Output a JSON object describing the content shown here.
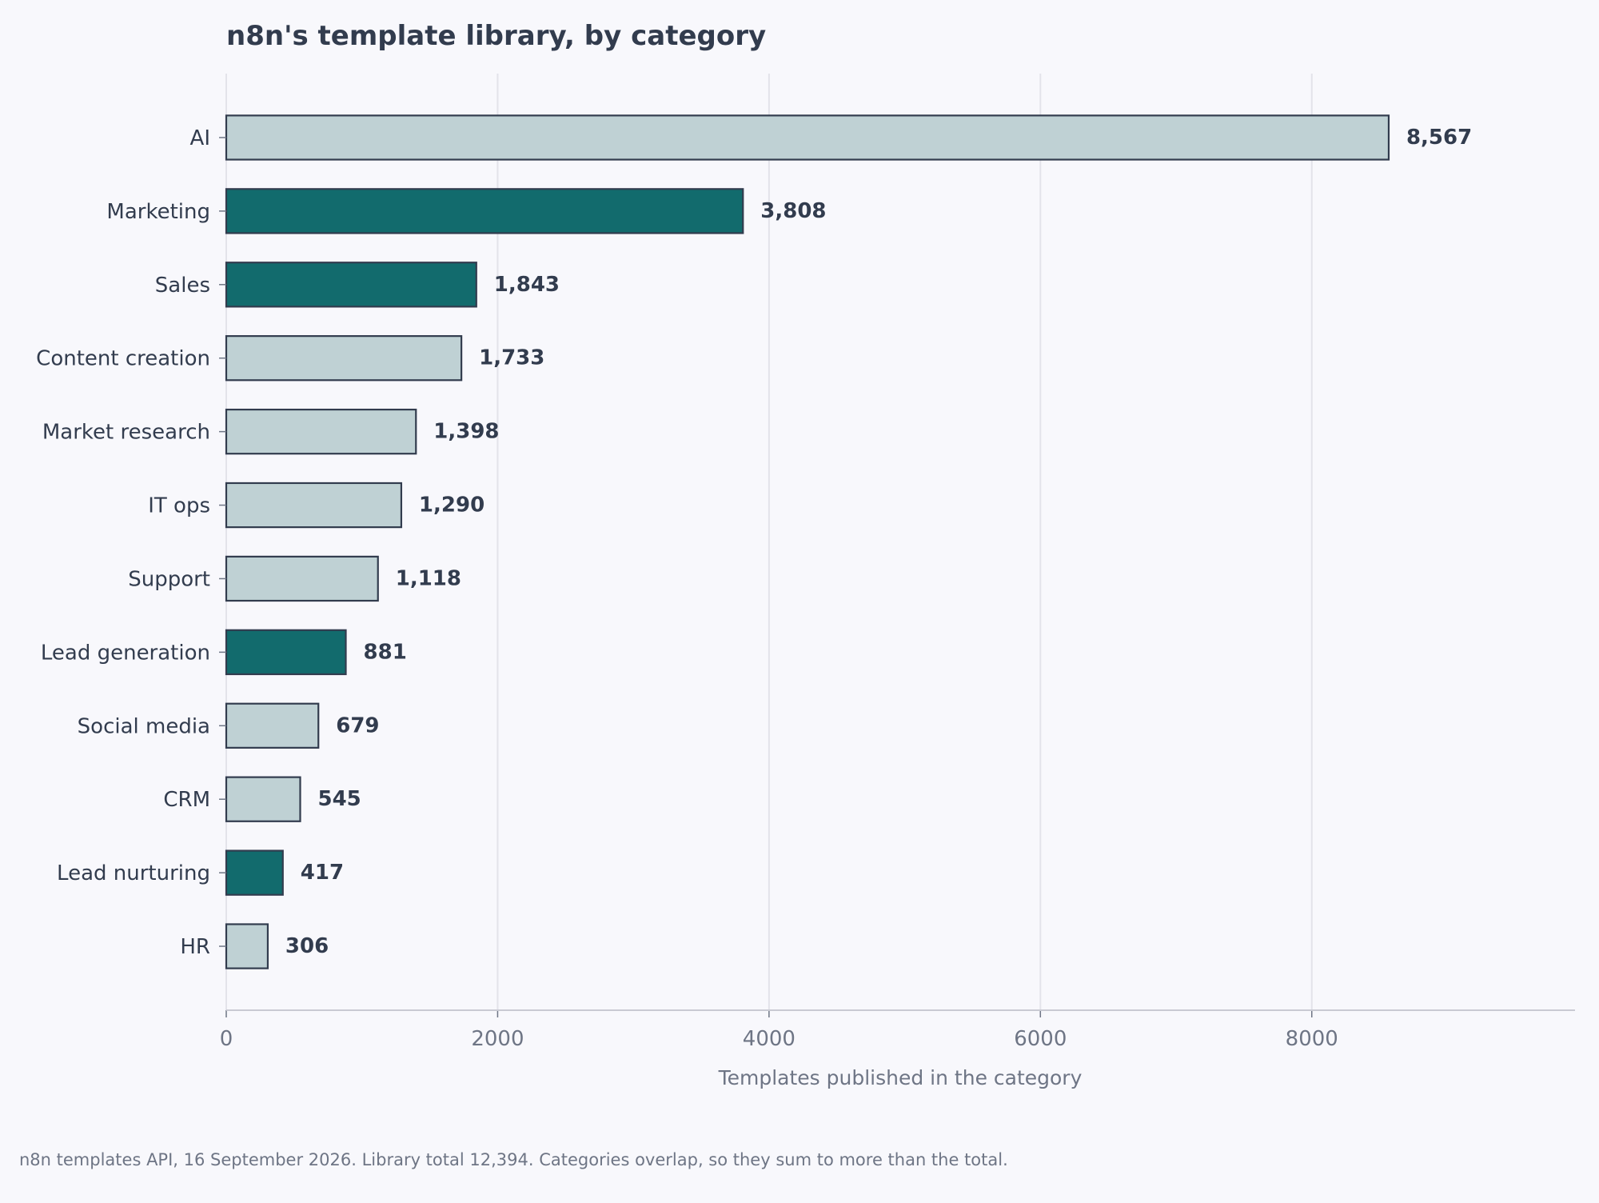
{
  "chart_data": {
    "type": "bar",
    "orientation": "horizontal",
    "title": "n8n's template library, by category",
    "xlabel": "Templates published in the category",
    "ylabel": "",
    "xlim": [
      0,
      9940
    ],
    "xticks": [
      0,
      2000,
      4000,
      6000,
      8000
    ],
    "xtick_labels": [
      "0",
      "2000",
      "4000",
      "6000",
      "8000"
    ],
    "grid": "vertical",
    "categories": [
      "AI",
      "Marketing",
      "Sales",
      "Content creation",
      "Market research",
      "IT ops",
      "Support",
      "Lead generation",
      "Social media",
      "CRM",
      "Lead nurturing",
      "HR"
    ],
    "values": [
      8567,
      3808,
      1843,
      1733,
      1398,
      1290,
      1118,
      881,
      679,
      545,
      417,
      306
    ],
    "value_labels": [
      "8,567",
      "3,808",
      "1,843",
      "1,733",
      "1,398",
      "1,290",
      "1,118",
      "881",
      "679",
      "545",
      "417",
      "306"
    ],
    "highlighted": [
      "Marketing",
      "Sales",
      "Lead generation",
      "Lead nurturing"
    ],
    "colors": {
      "highlight": "#126b6d",
      "default": "#bfd1d4",
      "bar_edge": "#323c4e",
      "text": "#323c4e",
      "muted": "#6e7585",
      "grid": "#e3e3ea",
      "background": "#f8f8fc"
    },
    "footnote": "n8n templates API, 16 September 2026. Library total 12,394. Categories overlap, so they sum to more than the total."
  }
}
